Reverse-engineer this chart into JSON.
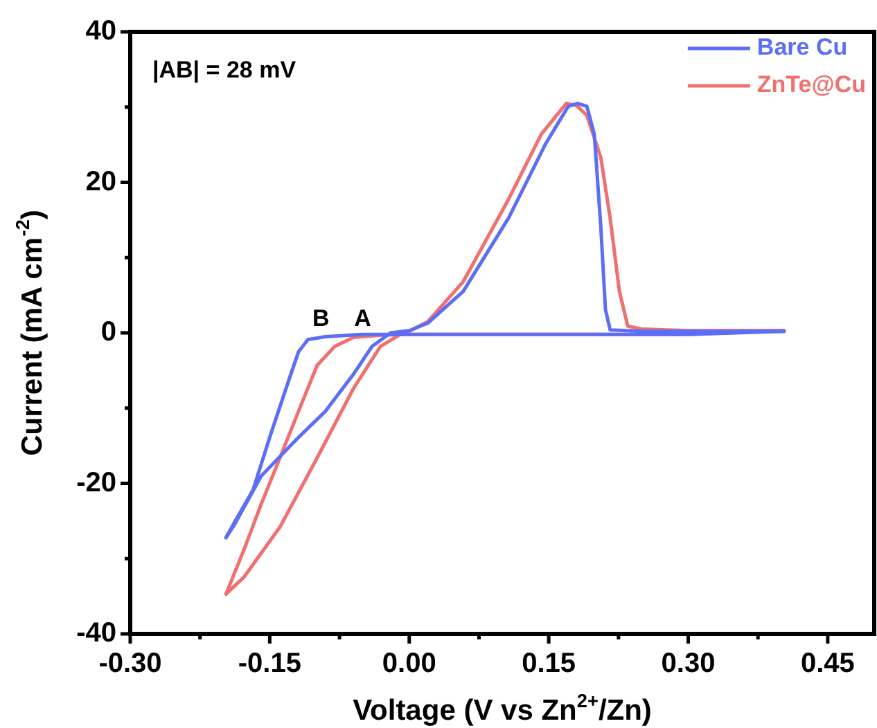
{
  "chart_data": {
    "type": "line",
    "xlabel": "Voltage (V vs Zn$^{2+}$/Zn)",
    "ylabel": "Current (mA cm$^{-2}$)",
    "xlim": [
      -0.3,
      0.5
    ],
    "xticks": [
      {
        "value": -0.3,
        "label": "-0.30"
      },
      {
        "value": -0.225,
        "label": null
      },
      -0.15,
      {
        "value": -0.075,
        "label": null
      },
      {
        "value": 0,
        "label": "0.00"
      },
      {
        "value": 0.075,
        "label": null
      },
      0.15,
      {
        "value": 0.225,
        "label": null
      },
      {
        "value": 0.3,
        "label": "0.30"
      },
      {
        "value": 0.375,
        "label": null
      },
      0.45
    ],
    "ylim": [
      -40,
      40
    ],
    "yticks": [
      -40,
      {
        "value": -30,
        "label": null
      },
      -20,
      {
        "value": -10,
        "label": null
      },
      0,
      {
        "value": 10,
        "label": null
      },
      20,
      {
        "value": 30,
        "label": null
      },
      40
    ],
    "grid": false,
    "legend": "top right",
    "marker": "none",
    "line_style": "solid",
    "annotations": [
      "|AB| = 28 mV",
      {
        "text": "B",
        "x": -0.095,
        "y": 0
      },
      {
        "text": "A",
        "x": -0.05,
        "y": 0
      }
    ],
    "series": [
      {
        "name": "Bare Cu",
        "color": "#5b6ef5",
        "x": [
          -0.197,
          -0.188,
          -0.159,
          -0.12,
          -0.09,
          -0.06,
          -0.04,
          -0.02,
          0,
          0.02,
          0.058,
          0.107,
          0.147,
          0.171,
          0.181,
          0.191,
          0.199,
          0.206,
          0.211,
          0.216,
          0.25,
          0.3,
          0.35,
          0.403
        ],
        "values": [
          -27.2,
          -25.5,
          -19,
          -14,
          -10.4,
          -5.5,
          -1.8,
          0,
          0.3,
          1.3,
          5.5,
          15.3,
          25.2,
          30.1,
          30.5,
          30.1,
          26.4,
          14.1,
          3.1,
          0.4,
          0.2,
          0.2,
          0.2,
          0.2
        ]
      },
      {
        "color": "#5b6ef5",
        "x": [
          -0.197,
          -0.188,
          -0.168,
          -0.149,
          -0.129,
          -0.119,
          -0.109,
          -0.09,
          -0.05,
          0,
          0.1,
          0.2,
          0.3,
          0.403
        ],
        "values": [
          -27.2,
          -25.2,
          -20.9,
          -13.5,
          -6.1,
          -2.5,
          -0.9,
          -0.5,
          -0.2,
          -0.2,
          -0.2,
          -0.2,
          -0.2,
          0.2
        ]
      },
      {
        "name": "ZnTe@Cu",
        "color": "#f07070",
        "x": [
          -0.197,
          -0.178,
          -0.139,
          -0.099,
          -0.06,
          -0.031,
          -0.011,
          0,
          0.02,
          0.058,
          0.107,
          0.142,
          0.169,
          0.18,
          0.191,
          0.206,
          0.216,
          0.226,
          0.235,
          0.25,
          0.3,
          0.35,
          0.403
        ],
        "values": [
          -34.7,
          -32.5,
          -25.8,
          -16.6,
          -7.4,
          -1.8,
          -0.3,
          0.2,
          1.5,
          6.8,
          17.8,
          26.4,
          30.5,
          30.2,
          28.9,
          23.3,
          15.3,
          5.5,
          0.9,
          0.5,
          0.3,
          0.3,
          0.3
        ]
      },
      {
        "color": "#f07070",
        "x": [
          -0.197,
          -0.178,
          -0.159,
          -0.139,
          -0.119,
          -0.099,
          -0.08,
          -0.06,
          -0.03,
          0,
          0.1,
          0.2,
          0.3,
          0.403
        ],
        "values": [
          -34.7,
          -28.9,
          -22.7,
          -16.6,
          -10.4,
          -4.3,
          -1.8,
          -0.6,
          -0.3,
          -0.2,
          -0.2,
          -0.2,
          -0.2,
          0.3
        ]
      }
    ]
  }
}
